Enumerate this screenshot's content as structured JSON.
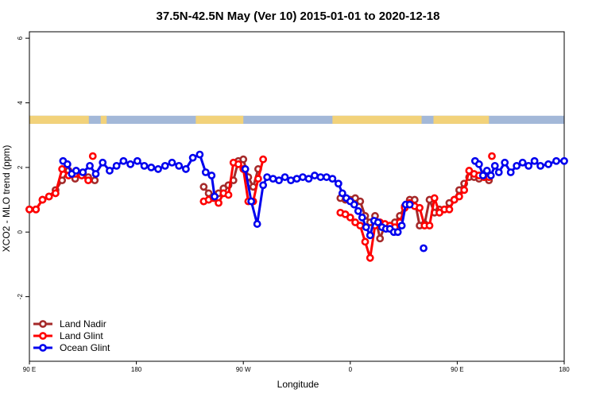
{
  "chart_data": {
    "type": "line",
    "title": "37.5N-42.5N May (Ver 10)   2015-01-01 to 2020-12-18",
    "xlabel": "Longitude",
    "ylabel": "XCO2 - MLO trend (ppm)",
    "xlim": [
      -90,
      180
    ],
    "ylim": [
      -4,
      6.2
    ],
    "x_axis_note": "longitude wraps: 90 E, 180, 90 W, 0, 90 E, 180",
    "x_ticks": [
      {
        "x": -90,
        "label": "90 E"
      },
      {
        "x": -36,
        "label": "180"
      },
      {
        "x": 18,
        "label": "90 W"
      },
      {
        "x": 72,
        "label": "0"
      },
      {
        "x": 126,
        "label": "90 E"
      },
      {
        "x": 180,
        "label": "180"
      }
    ],
    "y_ticks": [
      {
        "y": -2,
        "label": "-2"
      },
      {
        "y": 0,
        "label": "0"
      },
      {
        "y": 2,
        "label": "2"
      },
      {
        "y": 4,
        "label": "4"
      },
      {
        "y": 6,
        "label": "6"
      }
    ],
    "map_strip": {
      "y_range": [
        3.35,
        3.6
      ],
      "ocean_color": "#a3b8d8",
      "land_color": "#f2d27a"
    },
    "legend_position": "bottom-left",
    "series": [
      {
        "name": "Land Nadir",
        "color": "#a52a2a",
        "points": [
          [
            -90,
            0.7
          ],
          [
            -86.7,
            0.7
          ],
          [
            -83.4,
            1.0
          ],
          [
            -80.1,
            1.1
          ],
          [
            -76.8,
            1.3
          ],
          [
            -73.5,
            1.6
          ],
          [
            -70.2,
            1.9
          ],
          [
            -66.9,
            1.65
          ],
          [
            -63.6,
            1.8
          ],
          [
            -60.3,
            1.7
          ],
          [
            -57,
            1.6
          ],
          null,
          [
            -2,
            1.4
          ],
          [
            0.5,
            1.2
          ],
          [
            3,
            1.1
          ],
          [
            5.5,
            1.2
          ],
          [
            8,
            1.35
          ],
          [
            10.5,
            1.45
          ],
          [
            13,
            1.6
          ],
          [
            15.5,
            2.2
          ],
          [
            18,
            2.25
          ],
          [
            20.5,
            1.7
          ],
          [
            23,
            1.4
          ],
          [
            25.5,
            1.95
          ],
          null,
          [
            67,
            1.05
          ],
          [
            69.5,
            1.0
          ],
          [
            72,
            1.0
          ],
          [
            74.5,
            1.05
          ],
          [
            77,
            0.95
          ],
          [
            79.5,
            0.5
          ],
          [
            82,
            0.3
          ],
          [
            84.5,
            0.5
          ],
          [
            87,
            -0.2
          ],
          [
            89.5,
            0.2
          ],
          [
            92,
            0.1
          ],
          [
            94.5,
            0.3
          ],
          [
            97,
            0.5
          ],
          [
            99.5,
            0.8
          ],
          [
            102,
            1.0
          ],
          [
            104.5,
            1.0
          ],
          [
            107,
            0.2
          ],
          [
            109.5,
            0.25
          ],
          [
            112,
            1.0
          ],
          [
            114.5,
            0.6
          ],
          [
            117,
            0.7
          ],
          [
            119.5,
            0.7
          ],
          [
            122,
            0.9
          ],
          [
            124.5,
            1.0
          ],
          [
            127,
            1.3
          ],
          [
            129.5,
            1.5
          ],
          [
            132,
            1.7
          ],
          [
            134.5,
            1.7
          ],
          [
            137,
            1.65
          ],
          [
            139.5,
            1.8
          ],
          [
            142,
            1.6
          ]
        ]
      },
      {
        "name": "Land Glint",
        "color": "#ff0000",
        "points": [
          [
            -90,
            0.7
          ],
          [
            -86.7,
            0.7
          ],
          [
            -83.4,
            1.0
          ],
          [
            -80.1,
            1.1
          ],
          [
            -76.8,
            1.2
          ],
          [
            -73.5,
            1.95
          ],
          [
            -70.2,
            1.75
          ],
          [
            -66.9,
            1.8
          ],
          [
            -63.6,
            1.75
          ],
          [
            -60.3,
            1.6
          ],
          null,
          [
            -58,
            2.35
          ],
          null,
          [
            -2,
            0.95
          ],
          [
            0.5,
            1.0
          ],
          [
            3,
            1.05
          ],
          [
            5.5,
            0.9
          ],
          [
            8,
            1.2
          ],
          [
            10.5,
            1.15
          ],
          [
            13,
            2.15
          ],
          [
            15.5,
            2.1
          ],
          [
            18,
            1.95
          ],
          [
            20.5,
            0.95
          ],
          [
            23,
            0.95
          ],
          [
            25.5,
            1.65
          ],
          [
            28,
            2.25
          ],
          null,
          [
            67,
            0.6
          ],
          [
            69.5,
            0.55
          ],
          [
            72,
            0.45
          ],
          [
            74.5,
            0.3
          ],
          [
            77,
            0.2
          ],
          [
            79.5,
            -0.3
          ],
          [
            82,
            -0.8
          ],
          [
            84.5,
            0.2
          ],
          [
            87,
            0.3
          ],
          [
            89.5,
            0.25
          ],
          [
            92,
            0.2
          ],
          [
            94.5,
            0.15
          ],
          [
            97,
            0.3
          ],
          [
            99.5,
            0.75
          ],
          [
            102,
            0.9
          ],
          [
            104.5,
            0.8
          ],
          [
            107,
            0.75
          ],
          [
            109.5,
            0.2
          ],
          [
            112,
            0.2
          ],
          [
            114.5,
            1.05
          ],
          [
            117,
            0.6
          ],
          [
            119.5,
            0.7
          ],
          [
            122,
            0.7
          ],
          [
            124.5,
            1.0
          ],
          [
            127,
            1.1
          ],
          [
            129.5,
            1.3
          ],
          [
            132,
            1.9
          ],
          [
            134.5,
            1.8
          ],
          [
            137,
            1.75
          ],
          [
            139.5,
            1.7
          ],
          [
            142,
            1.7
          ],
          null,
          [
            143.5,
            2.35
          ]
        ]
      },
      {
        "name": "Ocean Glint",
        "color": "#0000ee",
        "points": [
          [
            -73,
            2.2
          ],
          [
            -70.8,
            2.1
          ],
          [
            -68.6,
            1.8
          ],
          [
            -66.4,
            1.9
          ],
          [
            -63,
            1.85
          ],
          [
            -59.5,
            2.05
          ],
          [
            -56.5,
            1.8
          ],
          [
            -53,
            2.15
          ],
          [
            -49.5,
            1.9
          ],
          [
            -46,
            2.05
          ],
          [
            -42.5,
            2.2
          ],
          [
            -39,
            2.1
          ],
          [
            -35.5,
            2.2
          ],
          [
            -32,
            2.05
          ],
          [
            -28.5,
            2.0
          ],
          [
            -25,
            1.95
          ],
          [
            -21.5,
            2.05
          ],
          [
            -18,
            2.15
          ],
          [
            -14.5,
            2.05
          ],
          [
            -11,
            1.95
          ],
          [
            -7.5,
            2.3
          ],
          [
            -4,
            2.4
          ],
          [
            -1,
            1.85
          ],
          [
            2,
            1.75
          ],
          [
            3.5,
            1.1
          ],
          null,
          [
            19,
            1.95
          ],
          [
            22,
            0.95
          ],
          [
            25,
            0.25
          ],
          [
            28,
            1.45
          ],
          [
            30,
            1.7
          ],
          [
            33,
            1.65
          ],
          [
            36,
            1.6
          ],
          [
            39,
            1.7
          ],
          [
            42,
            1.6
          ],
          [
            45,
            1.65
          ],
          [
            48,
            1.7
          ],
          [
            51,
            1.65
          ],
          [
            54,
            1.75
          ],
          [
            57,
            1.7
          ],
          [
            60,
            1.7
          ],
          [
            63,
            1.65
          ],
          [
            66,
            1.5
          ],
          [
            68,
            1.2
          ],
          [
            70,
            1.05
          ],
          [
            72,
            0.95
          ],
          [
            74,
            0.85
          ],
          [
            76,
            0.65
          ],
          [
            78,
            0.45
          ],
          [
            80,
            0.15
          ],
          [
            82,
            -0.1
          ],
          [
            84,
            0.35
          ],
          [
            86,
            0.3
          ],
          [
            88,
            0.15
          ],
          [
            90,
            0.1
          ],
          [
            92,
            0.1
          ],
          [
            94,
            0.0
          ],
          [
            96,
            0.0
          ],
          [
            98,
            0.2
          ],
          [
            100,
            0.85
          ],
          [
            102,
            0.85
          ],
          null,
          [
            109,
            -0.5
          ],
          null,
          [
            135,
            2.2
          ],
          [
            137,
            2.1
          ],
          [
            139,
            1.75
          ],
          [
            141,
            1.9
          ],
          [
            143,
            1.75
          ],
          [
            145,
            2.05
          ],
          [
            147,
            1.85
          ],
          [
            150,
            2.15
          ],
          [
            153,
            1.85
          ],
          [
            156,
            2.05
          ],
          [
            159,
            2.15
          ],
          [
            162,
            2.05
          ],
          [
            165,
            2.2
          ],
          [
            168,
            2.05
          ],
          [
            172,
            2.1
          ],
          [
            176,
            2.2
          ],
          [
            180,
            2.2
          ]
        ]
      }
    ]
  }
}
